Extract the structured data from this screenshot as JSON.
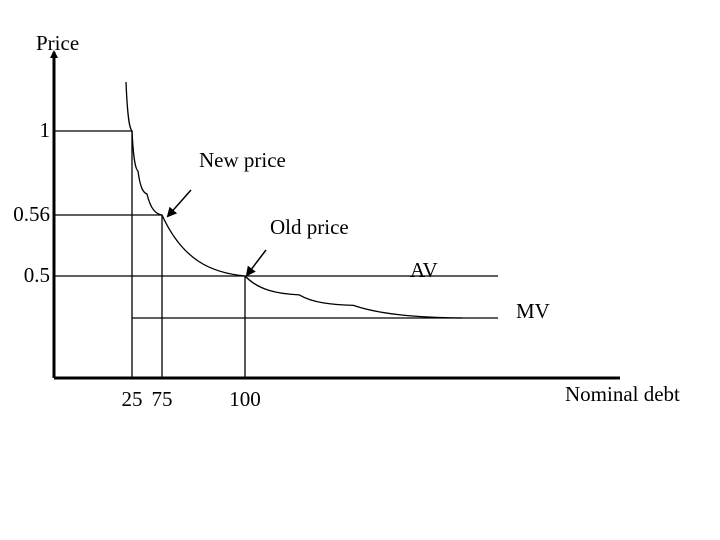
{
  "chart_data": {
    "type": "line",
    "xlabel": "Nominal debt",
    "ylabel": "Price",
    "x_ticks": [
      {
        "label": "25",
        "value": 25
      },
      {
        "label": "75",
        "value": 75
      },
      {
        "label": "100",
        "value": 100
      }
    ],
    "y_ticks": [
      {
        "label": "1",
        "value": 1
      },
      {
        "label": "0.56",
        "value": 0.56
      },
      {
        "label": "0.5",
        "value": 0.5
      }
    ],
    "series": [
      {
        "name": "AV",
        "x": [
          25,
          35,
          50,
          75,
          100,
          150,
          200,
          300
        ],
        "y": [
          1.0,
          0.79,
          0.67,
          0.56,
          0.5,
          0.41,
          0.36,
          0.3
        ]
      },
      {
        "name": "MV",
        "x": [
          25,
          300
        ],
        "y": [
          0.3,
          0.3
        ]
      }
    ],
    "annotations": [
      {
        "text": "New price",
        "x": 75,
        "y": 0.56
      },
      {
        "text": "Old price",
        "x": 100,
        "y": 0.5
      }
    ]
  }
}
